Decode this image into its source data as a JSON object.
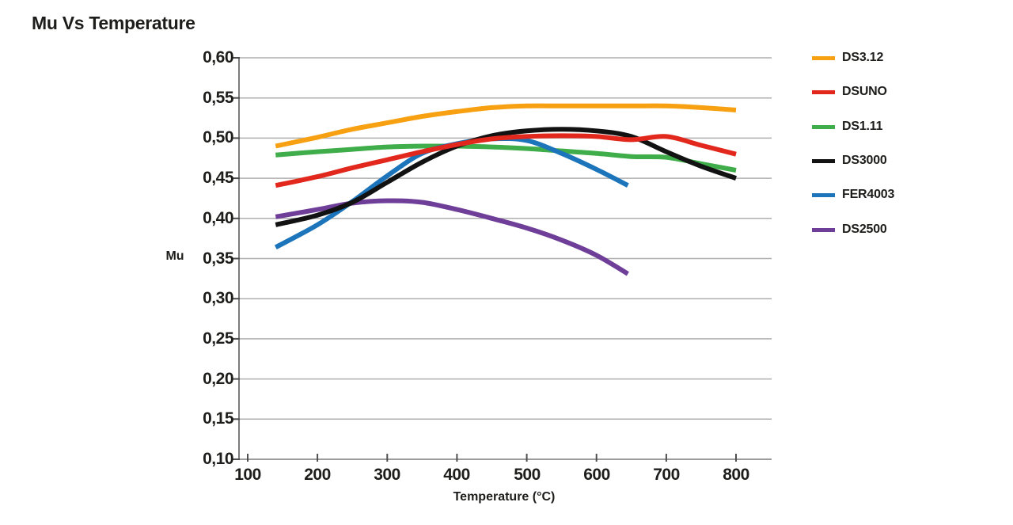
{
  "page": {
    "background": "#ffffff"
  },
  "chart_data": {
    "type": "line",
    "title": "Mu Vs Temperature",
    "xlabel": "Temperature (°C)",
    "ylabel": "Mu",
    "xlim": [
      100,
      800
    ],
    "ylim": [
      0.1,
      0.6
    ],
    "grid": "horizontal",
    "legend_position": "right",
    "decimal_separator": "comma",
    "x_ticks": [
      100,
      200,
      300,
      400,
      500,
      600,
      700,
      800
    ],
    "x_tick_labels": [
      "100",
      "200",
      "300",
      "400",
      "500",
      "600",
      "700",
      "800"
    ],
    "y_ticks": [
      0.6,
      0.55,
      0.5,
      0.45,
      0.4,
      0.35,
      0.3,
      0.25,
      0.2,
      0.15,
      0.1
    ],
    "y_tick_labels": [
      "0,60",
      "0,55",
      "0,50",
      "0,45",
      "0,40",
      "0,35",
      "0,30",
      "0,25",
      "0,20",
      "0,15",
      "0,10"
    ],
    "colors": {
      "text": "#1d1d1b",
      "grid": "#afafaf",
      "axis": "#7c7c7c",
      "tick": "#4f4f4f"
    },
    "series": [
      {
        "name": "DS3.12",
        "color": "#f7a011",
        "x": [
          140,
          200,
          250,
          300,
          350,
          400,
          450,
          500,
          550,
          600,
          650,
          700,
          750,
          800
        ],
        "y": [
          0.49,
          0.501,
          0.511,
          0.519,
          0.527,
          0.533,
          0.538,
          0.54,
          0.54,
          0.54,
          0.54,
          0.54,
          0.538,
          0.535
        ]
      },
      {
        "name": "DSUNO",
        "color": "#e2271d",
        "x": [
          140,
          200,
          250,
          300,
          350,
          400,
          450,
          500,
          550,
          600,
          650,
          700,
          750,
          800
        ],
        "y": [
          0.441,
          0.452,
          0.463,
          0.473,
          0.483,
          0.492,
          0.499,
          0.502,
          0.503,
          0.502,
          0.498,
          0.502,
          0.491,
          0.48
        ]
      },
      {
        "name": "DS1.11",
        "color": "#3fad4a",
        "x": [
          140,
          200,
          250,
          300,
          350,
          400,
          450,
          500,
          550,
          600,
          650,
          700,
          750,
          800
        ],
        "y": [
          0.479,
          0.483,
          0.486,
          0.489,
          0.49,
          0.49,
          0.489,
          0.487,
          0.484,
          0.481,
          0.477,
          0.476,
          0.468,
          0.46
        ]
      },
      {
        "name": "DS3000",
        "color": "#121212",
        "x": [
          140,
          200,
          250,
          300,
          350,
          400,
          450,
          500,
          550,
          600,
          650,
          700,
          750,
          800
        ],
        "y": [
          0.392,
          0.404,
          0.42,
          0.445,
          0.47,
          0.49,
          0.503,
          0.509,
          0.511,
          0.509,
          0.502,
          0.483,
          0.465,
          0.45
        ]
      },
      {
        "name": "FER4003",
        "color": "#1c74bb",
        "x": [
          140,
          200,
          250,
          300,
          350,
          400,
          450,
          500,
          550,
          600,
          645
        ],
        "y": [
          0.364,
          0.392,
          0.421,
          0.453,
          0.481,
          0.493,
          0.499,
          0.497,
          0.481,
          0.461,
          0.441
        ]
      },
      {
        "name": "DS2500",
        "color": "#6e3e98",
        "x": [
          140,
          200,
          250,
          300,
          350,
          400,
          450,
          500,
          550,
          600,
          645
        ],
        "y": [
          0.402,
          0.411,
          0.419,
          0.422,
          0.42,
          0.411,
          0.4,
          0.388,
          0.373,
          0.354,
          0.331
        ]
      }
    ]
  }
}
